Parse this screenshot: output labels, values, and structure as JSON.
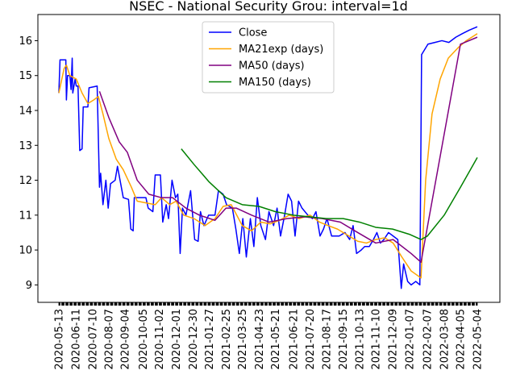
{
  "chart_data": {
    "type": "line",
    "title": "NSEC - National Security Grou: interval=1d",
    "xlabel": "",
    "ylabel": "",
    "ylim": [
      8.5,
      16.75
    ],
    "y_ticks": [
      9,
      10,
      11,
      12,
      13,
      14,
      15,
      16
    ],
    "x_start": "2020-05-13",
    "x_end": "2022-05-04",
    "x_ticks": [
      "2020-05-13",
      "2020-06-11",
      "2020-07-10",
      "2020-08-07",
      "2020-09-04",
      "2020-10-05",
      "2020-11-02",
      "2020-12-01",
      "2020-12-30",
      "2021-01-27",
      "2021-02-25",
      "2021-03-25",
      "2021-04-23",
      "2021-05-21",
      "2021-06-21",
      "2021-07-20",
      "2021-08-17",
      "2021-09-15",
      "2021-10-13",
      "2021-11-10",
      "2021-12-09",
      "2022-01-07",
      "2022-02-07",
      "2022-03-08",
      "2022-04-05",
      "2022-05-04"
    ],
    "legend": {
      "position": "top-center"
    },
    "grid": false,
    "series": [
      {
        "name": "Close",
        "color": "#0000ff",
        "points": [
          [
            "2020-05-13",
            14.5
          ],
          [
            "2020-05-15",
            15.45
          ],
          [
            "2020-05-25",
            15.45
          ],
          [
            "2020-05-26",
            14.3
          ],
          [
            "2020-05-28",
            15.0
          ],
          [
            "2020-06-01",
            15.0
          ],
          [
            "2020-06-03",
            14.6
          ],
          [
            "2020-06-05",
            15.5
          ],
          [
            "2020-06-06",
            14.5
          ],
          [
            "2020-06-10",
            14.9
          ],
          [
            "2020-06-12",
            14.7
          ],
          [
            "2020-06-15",
            14.7
          ],
          [
            "2020-06-18",
            12.85
          ],
          [
            "2020-06-22",
            12.9
          ],
          [
            "2020-06-24",
            14.1
          ],
          [
            "2020-07-02",
            14.1
          ],
          [
            "2020-07-04",
            14.65
          ],
          [
            "2020-07-18",
            14.7
          ],
          [
            "2020-07-22",
            11.8
          ],
          [
            "2020-07-24",
            12.2
          ],
          [
            "2020-07-28",
            11.3
          ],
          [
            "2020-08-02",
            12.0
          ],
          [
            "2020-08-06",
            11.2
          ],
          [
            "2020-08-10",
            11.9
          ],
          [
            "2020-08-18",
            12.0
          ],
          [
            "2020-08-22",
            12.4
          ],
          [
            "2020-09-01",
            11.5
          ],
          [
            "2020-09-10",
            11.45
          ],
          [
            "2020-09-14",
            10.6
          ],
          [
            "2020-09-18",
            10.55
          ],
          [
            "2020-09-20",
            11.5
          ],
          [
            "2020-10-10",
            11.5
          ],
          [
            "2020-10-14",
            11.2
          ],
          [
            "2020-10-22",
            11.1
          ],
          [
            "2020-10-26",
            12.15
          ],
          [
            "2020-11-04",
            12.15
          ],
          [
            "2020-11-08",
            10.8
          ],
          [
            "2020-11-14",
            11.3
          ],
          [
            "2020-11-18",
            10.9
          ],
          [
            "2020-11-24",
            12.0
          ],
          [
            "2020-11-30",
            11.5
          ],
          [
            "2020-12-04",
            11.6
          ],
          [
            "2020-12-08",
            9.9
          ],
          [
            "2020-12-12",
            11.2
          ],
          [
            "2020-12-18",
            11.0
          ],
          [
            "2020-12-26",
            11.7
          ],
          [
            "2021-01-02",
            10.3
          ],
          [
            "2021-01-08",
            10.25
          ],
          [
            "2021-01-12",
            11.1
          ],
          [
            "2021-01-18",
            10.7
          ],
          [
            "2021-01-26",
            11.0
          ],
          [
            "2021-02-06",
            11.0
          ],
          [
            "2021-02-12",
            11.7
          ],
          [
            "2021-02-20",
            11.6
          ],
          [
            "2021-02-26",
            11.3
          ],
          [
            "2021-03-08",
            11.2
          ],
          [
            "2021-03-14",
            10.6
          ],
          [
            "2021-03-20",
            9.9
          ],
          [
            "2021-03-26",
            10.9
          ],
          [
            "2021-04-01",
            9.8
          ],
          [
            "2021-04-08",
            10.9
          ],
          [
            "2021-04-14",
            10.1
          ],
          [
            "2021-04-20",
            11.5
          ],
          [
            "2021-04-26",
            10.7
          ],
          [
            "2021-05-04",
            10.3
          ],
          [
            "2021-05-10",
            11.1
          ],
          [
            "2021-05-18",
            10.7
          ],
          [
            "2021-05-24",
            11.2
          ],
          [
            "2021-05-30",
            10.4
          ],
          [
            "2021-06-06",
            11.0
          ],
          [
            "2021-06-12",
            11.6
          ],
          [
            "2021-06-18",
            11.4
          ],
          [
            "2021-06-24",
            10.4
          ],
          [
            "2021-06-30",
            11.4
          ],
          [
            "2021-07-06",
            11.2
          ],
          [
            "2021-07-16",
            11.0
          ],
          [
            "2021-07-24",
            10.9
          ],
          [
            "2021-07-30",
            11.1
          ],
          [
            "2021-08-06",
            10.4
          ],
          [
            "2021-08-12",
            10.6
          ],
          [
            "2021-08-18",
            10.9
          ],
          [
            "2021-08-26",
            10.4
          ],
          [
            "2021-09-08",
            10.4
          ],
          [
            "2021-09-18",
            10.5
          ],
          [
            "2021-09-26",
            10.3
          ],
          [
            "2021-10-02",
            10.7
          ],
          [
            "2021-10-08",
            9.9
          ],
          [
            "2021-10-16",
            10.0
          ],
          [
            "2021-10-22",
            10.1
          ],
          [
            "2021-10-30",
            10.1
          ],
          [
            "2021-11-06",
            10.3
          ],
          [
            "2021-11-12",
            10.5
          ],
          [
            "2021-11-18",
            10.2
          ],
          [
            "2021-11-24",
            10.3
          ],
          [
            "2021-12-02",
            10.5
          ],
          [
            "2021-12-10",
            10.4
          ],
          [
            "2021-12-18",
            10.3
          ],
          [
            "2021-12-24",
            8.9
          ],
          [
            "2021-12-28",
            9.6
          ],
          [
            "2022-01-04",
            9.1
          ],
          [
            "2022-01-10",
            9.0
          ],
          [
            "2022-01-18",
            9.1
          ],
          [
            "2022-01-25",
            9.0
          ],
          [
            "2022-01-28",
            15.6
          ],
          [
            "2022-02-08",
            15.9
          ],
          [
            "2022-02-20",
            15.95
          ],
          [
            "2022-03-04",
            16.0
          ],
          [
            "2022-03-16",
            15.95
          ],
          [
            "2022-03-28",
            16.1
          ],
          [
            "2022-04-08",
            16.2
          ],
          [
            "2022-04-20",
            16.3
          ],
          [
            "2022-05-04",
            16.4
          ]
        ]
      },
      {
        "name": "MA21exp (days)",
        "color": "#ffa500",
        "points": [
          [
            "2020-05-13",
            14.5
          ],
          [
            "2020-05-22",
            15.2
          ],
          [
            "2020-05-26",
            15.3
          ],
          [
            "2020-06-01",
            15.0
          ],
          [
            "2020-06-12",
            14.9
          ],
          [
            "2020-06-22",
            14.5
          ],
          [
            "2020-07-02",
            14.2
          ],
          [
            "2020-07-12",
            14.3
          ],
          [
            "2020-07-20",
            14.4
          ],
          [
            "2020-07-28",
            13.9
          ],
          [
            "2020-08-07",
            13.2
          ],
          [
            "2020-08-20",
            12.6
          ],
          [
            "2020-09-01",
            12.3
          ],
          [
            "2020-09-15",
            11.8
          ],
          [
            "2020-09-25",
            11.4
          ],
          [
            "2020-10-10",
            11.35
          ],
          [
            "2020-10-26",
            11.3
          ],
          [
            "2020-11-06",
            11.5
          ],
          [
            "2020-11-20",
            11.3
          ],
          [
            "2020-12-01",
            11.4
          ],
          [
            "2020-12-14",
            11.0
          ],
          [
            "2021-01-01",
            10.9
          ],
          [
            "2021-01-20",
            10.7
          ],
          [
            "2021-02-06",
            10.9
          ],
          [
            "2021-02-20",
            11.25
          ],
          [
            "2021-03-06",
            11.3
          ],
          [
            "2021-03-25",
            10.7
          ],
          [
            "2021-04-10",
            10.55
          ],
          [
            "2021-04-26",
            10.8
          ],
          [
            "2021-05-12",
            10.75
          ],
          [
            "2021-05-28",
            10.85
          ],
          [
            "2021-06-14",
            11.0
          ],
          [
            "2021-07-01",
            10.9
          ],
          [
            "2021-07-20",
            11.0
          ],
          [
            "2021-08-05",
            10.8
          ],
          [
            "2021-08-20",
            10.7
          ],
          [
            "2021-09-05",
            10.6
          ],
          [
            "2021-09-20",
            10.45
          ],
          [
            "2021-10-10",
            10.25
          ],
          [
            "2021-10-25",
            10.2
          ],
          [
            "2021-11-10",
            10.3
          ],
          [
            "2021-11-25",
            10.35
          ],
          [
            "2021-12-10",
            10.2
          ],
          [
            "2021-12-25",
            9.8
          ],
          [
            "2022-01-10",
            9.4
          ],
          [
            "2022-01-27",
            9.2
          ],
          [
            "2022-02-04",
            12.0
          ],
          [
            "2022-02-15",
            13.9
          ],
          [
            "2022-03-01",
            14.9
          ],
          [
            "2022-03-15",
            15.5
          ],
          [
            "2022-04-01",
            15.8
          ],
          [
            "2022-04-15",
            16.0
          ],
          [
            "2022-05-04",
            16.2
          ]
        ]
      },
      {
        "name": "MA50 (days)",
        "color": "#800080",
        "points": [
          [
            "2020-07-22",
            14.55
          ],
          [
            "2020-08-07",
            13.8
          ],
          [
            "2020-08-25",
            13.1
          ],
          [
            "2020-09-08",
            12.8
          ],
          [
            "2020-09-25",
            12.0
          ],
          [
            "2020-10-15",
            11.6
          ],
          [
            "2020-11-06",
            11.5
          ],
          [
            "2020-11-25",
            11.5
          ],
          [
            "2020-12-18",
            11.2
          ],
          [
            "2021-01-10",
            11.0
          ],
          [
            "2021-02-06",
            10.85
          ],
          [
            "2021-02-25",
            11.2
          ],
          [
            "2021-03-15",
            11.2
          ],
          [
            "2021-04-10",
            11.0
          ],
          [
            "2021-05-10",
            10.8
          ],
          [
            "2021-06-10",
            10.9
          ],
          [
            "2021-07-10",
            10.95
          ],
          [
            "2021-08-10",
            10.9
          ],
          [
            "2021-09-10",
            10.8
          ],
          [
            "2021-10-10",
            10.5
          ],
          [
            "2021-11-10",
            10.2
          ],
          [
            "2021-12-10",
            10.3
          ],
          [
            "2022-01-10",
            9.9
          ],
          [
            "2022-01-27",
            9.65
          ],
          [
            "2022-04-05",
            15.9
          ],
          [
            "2022-05-04",
            16.1
          ]
        ]
      },
      {
        "name": "MA150 (days)",
        "color": "#008000",
        "points": [
          [
            "2020-12-10",
            12.9
          ],
          [
            "2021-01-01",
            12.45
          ],
          [
            "2021-01-27",
            11.95
          ],
          [
            "2021-02-25",
            11.5
          ],
          [
            "2021-03-25",
            11.3
          ],
          [
            "2021-04-23",
            11.25
          ],
          [
            "2021-05-21",
            11.1
          ],
          [
            "2021-06-21",
            11.0
          ],
          [
            "2021-07-20",
            10.95
          ],
          [
            "2021-08-17",
            10.9
          ],
          [
            "2021-09-15",
            10.9
          ],
          [
            "2021-10-13",
            10.8
          ],
          [
            "2021-11-10",
            10.65
          ],
          [
            "2021-12-09",
            10.6
          ],
          [
            "2022-01-07",
            10.45
          ],
          [
            "2022-01-27",
            10.3
          ],
          [
            "2022-02-07",
            10.4
          ],
          [
            "2022-03-08",
            11.0
          ],
          [
            "2022-04-05",
            11.8
          ],
          [
            "2022-05-04",
            12.65
          ]
        ]
      }
    ]
  }
}
